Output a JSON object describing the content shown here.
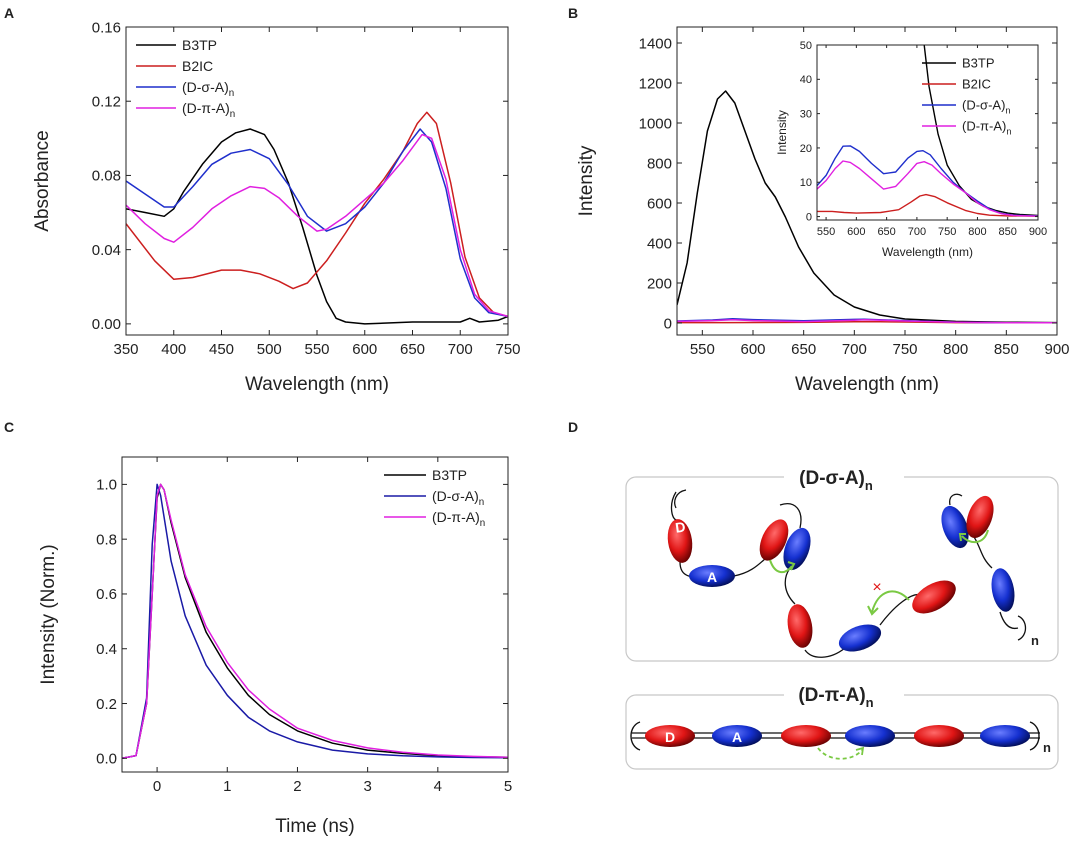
{
  "panels": {
    "A": {
      "letter": "A"
    },
    "B": {
      "letter": "B"
    },
    "C": {
      "letter": "C"
    },
    "D": {
      "letter": "D"
    }
  },
  "chart_data": [
    {
      "panel": "A",
      "type": "line",
      "title": "",
      "xlabel": "Wavelength (nm)",
      "ylabel": "Absorbance",
      "xlim": [
        350,
        750
      ],
      "ylim": [
        -0.006,
        0.16
      ],
      "xticks": [
        350,
        400,
        450,
        500,
        550,
        600,
        650,
        700,
        750
      ],
      "yticks": [
        0.0,
        0.04,
        0.08,
        0.12,
        0.16
      ],
      "ytick_labels": [
        "0.00",
        "0.04",
        "0.08",
        "0.12",
        "0.16"
      ],
      "legend_position": "top-left",
      "series": [
        {
          "name": "B3TP",
          "color": "#000000",
          "x": [
            350,
            370,
            390,
            400,
            410,
            430,
            450,
            465,
            480,
            495,
            505,
            520,
            535,
            550,
            560,
            570,
            580,
            600,
            650,
            700,
            710,
            720,
            740,
            750
          ],
          "y": [
            0.062,
            0.06,
            0.058,
            0.062,
            0.071,
            0.086,
            0.098,
            0.103,
            0.105,
            0.102,
            0.094,
            0.076,
            0.052,
            0.026,
            0.012,
            0.003,
            0.001,
            0.0,
            0.001,
            0.001,
            0.003,
            0.001,
            0.002,
            0.004
          ]
        },
        {
          "name": "B2IC",
          "color": "#cc1f1f",
          "x": [
            350,
            380,
            400,
            420,
            450,
            470,
            490,
            510,
            525,
            540,
            560,
            580,
            600,
            620,
            640,
            655,
            665,
            675,
            690,
            705,
            720,
            735,
            750
          ],
          "y": [
            0.054,
            0.034,
            0.024,
            0.025,
            0.029,
            0.029,
            0.027,
            0.023,
            0.019,
            0.022,
            0.034,
            0.049,
            0.065,
            0.078,
            0.093,
            0.108,
            0.114,
            0.108,
            0.076,
            0.036,
            0.014,
            0.006,
            0.004
          ]
        },
        {
          "name": "(D-σ-A)n",
          "label_main": "(D-σ-A)",
          "label_sub": "n",
          "color": "#1f2fcc",
          "x": [
            350,
            370,
            390,
            400,
            420,
            440,
            460,
            480,
            500,
            520,
            540,
            560,
            580,
            600,
            620,
            640,
            658,
            670,
            685,
            700,
            715,
            730,
            750
          ],
          "y": [
            0.077,
            0.07,
            0.063,
            0.063,
            0.074,
            0.086,
            0.092,
            0.094,
            0.089,
            0.075,
            0.058,
            0.05,
            0.054,
            0.063,
            0.076,
            0.093,
            0.105,
            0.098,
            0.073,
            0.035,
            0.014,
            0.006,
            0.004
          ]
        },
        {
          "name": "(D-π-A)n",
          "label_main": "(D-π-A)",
          "label_sub": "n",
          "color": "#e020e0",
          "x": [
            350,
            370,
            390,
            400,
            420,
            440,
            460,
            480,
            495,
            510,
            530,
            550,
            560,
            580,
            600,
            620,
            640,
            660,
            670,
            685,
            700,
            715,
            730,
            750
          ],
          "y": [
            0.064,
            0.054,
            0.046,
            0.044,
            0.052,
            0.062,
            0.069,
            0.074,
            0.073,
            0.068,
            0.058,
            0.05,
            0.051,
            0.058,
            0.067,
            0.076,
            0.088,
            0.102,
            0.1,
            0.078,
            0.04,
            0.016,
            0.007,
            0.004
          ]
        }
      ]
    },
    {
      "panel": "B",
      "type": "line",
      "title": "",
      "xlabel": "Wavelength (nm)",
      "ylabel": "Intensity",
      "xlim": [
        525,
        900
      ],
      "ylim": [
        -60,
        1480
      ],
      "xticks": [
        550,
        600,
        650,
        700,
        750,
        800,
        850,
        900
      ],
      "yticks": [
        0,
        200,
        400,
        600,
        800,
        1000,
        1200,
        1400
      ],
      "series": [
        {
          "name": "B3TP",
          "color": "#000000",
          "x": [
            525,
            535,
            545,
            555,
            565,
            573,
            582,
            592,
            602,
            612,
            622,
            632,
            645,
            660,
            680,
            700,
            725,
            750,
            800,
            850,
            900
          ],
          "y": [
            90,
            300,
            650,
            960,
            1120,
            1160,
            1100,
            960,
            820,
            700,
            630,
            530,
            380,
            250,
            140,
            80,
            40,
            20,
            8,
            4,
            2
          ]
        },
        {
          "name": "B2IC",
          "color": "#cc1f1f",
          "x": [
            525,
            575,
            650,
            700,
            715,
            750,
            800,
            900
          ],
          "y": [
            2,
            2,
            3,
            6,
            7,
            5,
            2,
            1
          ]
        },
        {
          "name": "(D-σ-A)n",
          "color": "#1f2fcc",
          "x": [
            525,
            560,
            580,
            600,
            650,
            700,
            710,
            750,
            800,
            850,
            900
          ],
          "y": [
            10,
            15,
            21,
            17,
            11,
            18,
            19,
            12,
            4,
            1,
            1
          ]
        },
        {
          "name": "(D-π-A)n",
          "color": "#e020e0",
          "x": [
            525,
            560,
            580,
            600,
            650,
            700,
            710,
            750,
            800,
            850,
            900
          ],
          "y": [
            8,
            12,
            16,
            12,
            7,
            14,
            16,
            10,
            4,
            1,
            1
          ]
        }
      ],
      "inset": {
        "type": "line",
        "xlabel": "Wavelength (nm)",
        "ylabel": "Intensity",
        "xlim": [
          535,
          900
        ],
        "ylim": [
          -1,
          50
        ],
        "xticks": [
          550,
          600,
          650,
          700,
          750,
          800,
          850,
          900
        ],
        "yticks": [
          0,
          10,
          20,
          30,
          40,
          50
        ],
        "legend_position": "top-right",
        "series": [
          {
            "name": "B3TP",
            "color": "#000000",
            "x": [
              712,
              720,
              735,
              750,
              770,
              790,
              810,
              830,
              850,
              870,
              900
            ],
            "y": [
              50,
              38,
              24,
              15,
              9,
              5,
              3,
              1.8,
              1,
              0.6,
              0.3
            ]
          },
          {
            "name": "B2IC",
            "color": "#cc1f1f",
            "x": [
              535,
              560,
              580,
              600,
              640,
              670,
              690,
              705,
              715,
              730,
              750,
              780,
              800,
              820,
              850,
              900
            ],
            "y": [
              1.5,
              1.5,
              1.2,
              1.0,
              1.2,
              2.0,
              4.2,
              6.0,
              6.4,
              5.8,
              4.0,
              1.8,
              0.9,
              0.4,
              0.2,
              0.1
            ]
          },
          {
            "name": "(D-σ-A)n",
            "label_main": "(D-σ-A)",
            "label_sub": "n",
            "color": "#1f2fcc",
            "x": [
              535,
              550,
              565,
              578,
              590,
              605,
              625,
              645,
              665,
              685,
              700,
              710,
              722,
              740,
              760,
              780,
              800,
              820,
              840,
              860,
              900
            ],
            "y": [
              9,
              12,
              17,
              20.5,
              20.6,
              19,
              15.5,
              12.5,
              13,
              17,
              19,
              19.2,
              18,
              14,
              10,
              7,
              4.5,
              2.2,
              0.9,
              0.4,
              0.2
            ]
          },
          {
            "name": "(D-π-A)n",
            "label_main": "(D-π-A)",
            "label_sub": "n",
            "color": "#e020e0",
            "x": [
              535,
              550,
              565,
              578,
              590,
              605,
              625,
              645,
              665,
              685,
              700,
              712,
              725,
              740,
              760,
              780,
              800,
              820,
              840,
              860,
              900
            ],
            "y": [
              8,
              10.5,
              14,
              16.2,
              15.8,
              14,
              11,
              8,
              8.8,
              12.5,
              15.5,
              16,
              15,
              12.5,
              9.5,
              7,
              4,
              2,
              0.8,
              0.3,
              0.1
            ]
          }
        ]
      }
    },
    {
      "panel": "C",
      "type": "line",
      "title": "",
      "xlabel": "Time (ns)",
      "ylabel": "Intensity (Norm.)",
      "xlim": [
        -0.5,
        5
      ],
      "ylim": [
        -0.05,
        1.1
      ],
      "xticks": [
        0,
        1,
        2,
        3,
        4,
        5
      ],
      "yticks": [
        0.0,
        0.2,
        0.4,
        0.6,
        0.8,
        1.0
      ],
      "ytick_labels": [
        "0.0",
        "0.2",
        "0.4",
        "0.6",
        "0.8",
        "1.0"
      ],
      "legend_position": "top-right",
      "series": [
        {
          "name": "B3TP",
          "color": "#000000",
          "x": [
            -0.5,
            -0.3,
            -0.15,
            -0.05,
            0.0,
            0.05,
            0.1,
            0.2,
            0.4,
            0.7,
            1.0,
            1.3,
            1.6,
            2.0,
            2.5,
            3.0,
            3.5,
            4.0,
            4.5,
            5.0
          ],
          "y": [
            0,
            0.01,
            0.2,
            0.7,
            0.95,
            1.0,
            0.98,
            0.86,
            0.66,
            0.46,
            0.33,
            0.23,
            0.16,
            0.1,
            0.055,
            0.03,
            0.018,
            0.01,
            0.006,
            0.004
          ]
        },
        {
          "name": "(D-σ-A)n",
          "label_main": "(D-σ-A)",
          "label_sub": "n",
          "color": "#1a1aa6",
          "x": [
            -0.5,
            -0.3,
            -0.15,
            -0.07,
            0.0,
            0.05,
            0.1,
            0.2,
            0.4,
            0.7,
            1.0,
            1.3,
            1.6,
            2.0,
            2.5,
            3.0,
            3.5,
            4.0,
            4.5,
            5.0
          ],
          "y": [
            0,
            0.01,
            0.22,
            0.78,
            1.0,
            0.96,
            0.88,
            0.72,
            0.52,
            0.34,
            0.23,
            0.15,
            0.1,
            0.06,
            0.03,
            0.016,
            0.009,
            0.005,
            0.003,
            0.002
          ]
        },
        {
          "name": "(D-π-A)n",
          "label_main": "(D-π-A)",
          "label_sub": "n",
          "color": "#e020e0",
          "x": [
            -0.5,
            -0.3,
            -0.15,
            -0.05,
            0.0,
            0.05,
            0.1,
            0.2,
            0.4,
            0.7,
            1.0,
            1.3,
            1.6,
            2.0,
            2.5,
            3.0,
            3.5,
            4.0,
            4.5,
            5.0
          ],
          "y": [
            0,
            0.01,
            0.2,
            0.7,
            0.96,
            1.0,
            0.98,
            0.87,
            0.67,
            0.48,
            0.35,
            0.25,
            0.18,
            0.11,
            0.065,
            0.038,
            0.022,
            0.012,
            0.007,
            0.004
          ]
        }
      ]
    }
  ],
  "diagram": {
    "top_title": "(D-σ-A)",
    "top_title_sub": "n",
    "bottom_title": "(D-π-A)",
    "bottom_title_sub": "n",
    "donor_letter": "D",
    "acceptor_letter": "A",
    "chain_end_sub": "n",
    "blocked_mark": "×",
    "colors": {
      "donor": "#e01515",
      "acceptor": "#1530d0",
      "transfer_arrow": "#7ac943"
    }
  }
}
